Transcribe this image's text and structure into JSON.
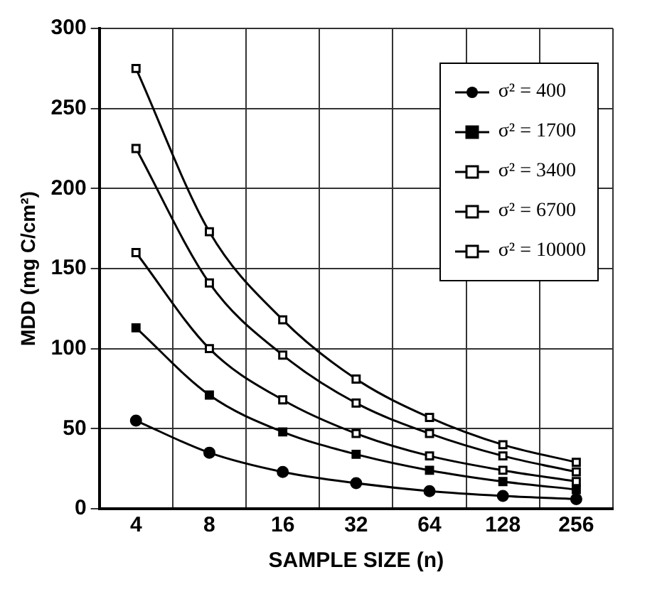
{
  "chart_data": {
    "type": "line",
    "xlabel": "SAMPLE SIZE (n)",
    "ylabel": "MDD (mg C/cm²)",
    "categories": [
      "4",
      "8",
      "16",
      "32",
      "64",
      "128",
      "256"
    ],
    "series": [
      {
        "name": "σ² = 400",
        "color": "#000000",
        "marker": "circle",
        "values": [
          55,
          35,
          23,
          16,
          11,
          8,
          6
        ]
      },
      {
        "name": "σ² = 1700",
        "color": "#000000",
        "marker": "square",
        "values": [
          113,
          71,
          48,
          34,
          24,
          17,
          12
        ]
      },
      {
        "name": "σ² = 3400",
        "color": "#000000",
        "marker": "square",
        "values": [
          160,
          100,
          68,
          47,
          33,
          24,
          17
        ]
      },
      {
        "name": "σ² = 6700",
        "color": "#000000",
        "marker": "square",
        "values": [
          225,
          141,
          96,
          66,
          47,
          33,
          23
        ]
      },
      {
        "name": "σ² = 10000",
        "color": "#000000",
        "marker": "square",
        "values": [
          275,
          173,
          118,
          81,
          57,
          40,
          29
        ]
      }
    ],
    "ylim": [
      0,
      300
    ],
    "yticks": [
      0,
      50,
      100,
      150,
      200,
      250,
      300
    ],
    "grid": true,
    "legend": "top right"
  }
}
